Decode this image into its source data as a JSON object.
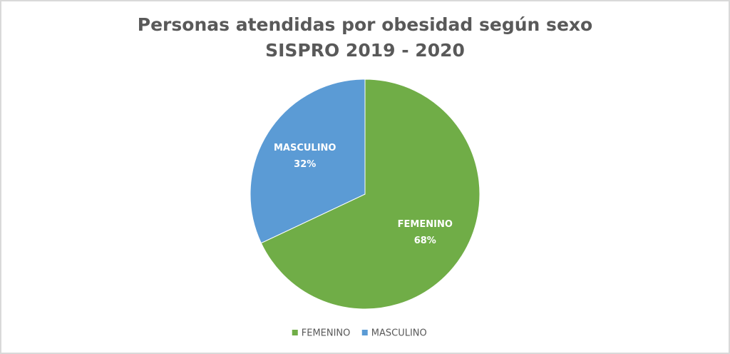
{
  "chart_data": {
    "type": "pie",
    "title": "Personas atendidas por obesidad según sexo",
    "subtitle": "SISPRO 2019 - 2020",
    "categories": [
      "FEMENINO",
      "MASCULINO"
    ],
    "values": [
      68,
      32
    ],
    "value_labels": [
      "68%",
      "32%"
    ],
    "colors": [
      "#70ad47",
      "#5b9bd5"
    ],
    "legend": "bottom"
  }
}
